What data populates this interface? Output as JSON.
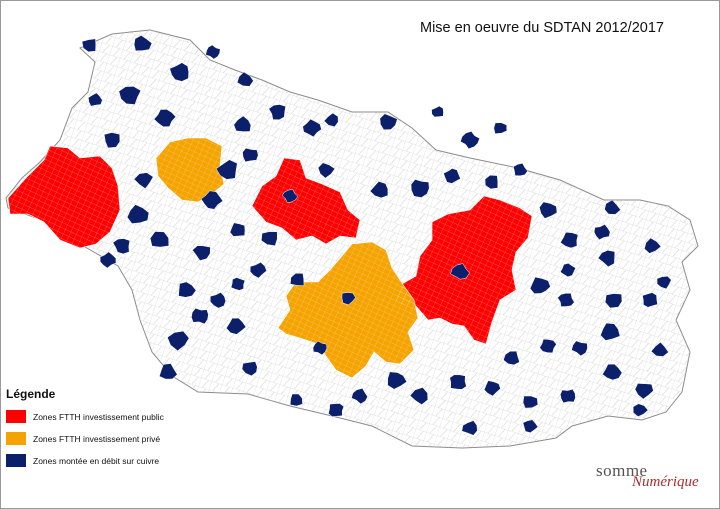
{
  "title": "Mise en oeuvre du SDTAN 2012/2017",
  "legend": {
    "title": "Légende",
    "items": [
      {
        "label": "Zones FTTH investissement public",
        "color": "#ff0000"
      },
      {
        "label": "Zones FTTH investissement privé",
        "color": "#f5a300"
      },
      {
        "label": "Zones montée en débit sur cuivre",
        "color": "#0b1f6b"
      }
    ]
  },
  "logo": {
    "part1": "somme",
    "part2": "Numérique"
  },
  "colors": {
    "outline": "#bdbdbd",
    "background": "#ffffff",
    "border": "#9a9a9a"
  }
}
